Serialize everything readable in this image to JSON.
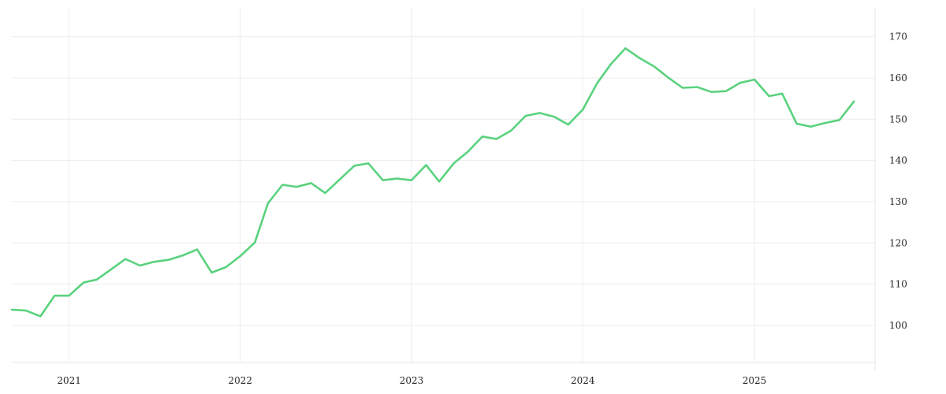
{
  "chart_data": {
    "type": "line",
    "title": "",
    "xlabel": "",
    "ylabel": "",
    "x_ticks": [
      "2021",
      "2022",
      "2023",
      "2024",
      "2025"
    ],
    "y_ticks": [
      100,
      110,
      120,
      130,
      140,
      150,
      160,
      170
    ],
    "xlim": [
      "2020-09-01",
      "2025-09-15"
    ],
    "ylim": [
      91,
      177
    ],
    "grid": true,
    "y_axis_side": "right",
    "colors": {
      "series": "#5ad27e",
      "grid": "#ececec",
      "text": "#222222"
    },
    "series": [
      {
        "name": "",
        "points": [
          [
            "2020-09-01",
            103.8
          ],
          [
            "2020-10-01",
            103.6
          ],
          [
            "2020-11-01",
            102.2
          ],
          [
            "2020-12-01",
            107.2
          ],
          [
            "2021-01-01",
            107.2
          ],
          [
            "2021-02-01",
            110.4
          ],
          [
            "2021-03-01",
            111.1
          ],
          [
            "2021-04-01",
            113.6
          ],
          [
            "2021-05-01",
            116.1
          ],
          [
            "2021-06-01",
            114.5
          ],
          [
            "2021-07-01",
            115.4
          ],
          [
            "2021-08-01",
            115.9
          ],
          [
            "2021-09-01",
            117.0
          ],
          [
            "2021-10-01",
            118.4
          ],
          [
            "2021-11-01",
            112.8
          ],
          [
            "2021-12-01",
            114.1
          ],
          [
            "2022-01-01",
            116.8
          ],
          [
            "2022-02-01",
            120.1
          ],
          [
            "2022-03-01",
            129.6
          ],
          [
            "2022-04-01",
            134.1
          ],
          [
            "2022-05-01",
            133.6
          ],
          [
            "2022-06-01",
            134.5
          ],
          [
            "2022-07-01",
            132.1
          ],
          [
            "2022-08-01",
            135.4
          ],
          [
            "2022-09-01",
            138.7
          ],
          [
            "2022-10-01",
            139.3
          ],
          [
            "2022-11-01",
            135.2
          ],
          [
            "2022-12-01",
            135.6
          ],
          [
            "2023-01-01",
            135.2
          ],
          [
            "2023-02-01",
            138.9
          ],
          [
            "2023-03-01",
            134.9
          ],
          [
            "2023-04-01",
            139.3
          ],
          [
            "2023-05-01",
            142.1
          ],
          [
            "2023-06-01",
            145.8
          ],
          [
            "2023-07-01",
            145.2
          ],
          [
            "2023-08-01",
            147.2
          ],
          [
            "2023-09-01",
            150.8
          ],
          [
            "2023-10-01",
            151.5
          ],
          [
            "2023-11-01",
            150.6
          ],
          [
            "2023-12-01",
            148.7
          ],
          [
            "2024-01-01",
            152.3
          ],
          [
            "2024-02-01",
            158.8
          ],
          [
            "2024-03-01",
            163.4
          ],
          [
            "2024-04-01",
            167.2
          ],
          [
            "2024-05-01",
            164.8
          ],
          [
            "2024-06-01",
            162.8
          ],
          [
            "2024-07-01",
            160.1
          ],
          [
            "2024-08-01",
            157.6
          ],
          [
            "2024-09-01",
            157.8
          ],
          [
            "2024-10-01",
            156.6
          ],
          [
            "2024-11-01",
            156.8
          ],
          [
            "2024-12-01",
            158.8
          ],
          [
            "2025-01-01",
            159.6
          ],
          [
            "2025-02-01",
            155.6
          ],
          [
            "2025-03-01",
            156.2
          ],
          [
            "2025-04-01",
            148.9
          ],
          [
            "2025-05-01",
            148.2
          ],
          [
            "2025-06-01",
            149.1
          ],
          [
            "2025-07-01",
            149.8
          ],
          [
            "2025-08-01",
            154.3
          ]
        ]
      }
    ]
  }
}
